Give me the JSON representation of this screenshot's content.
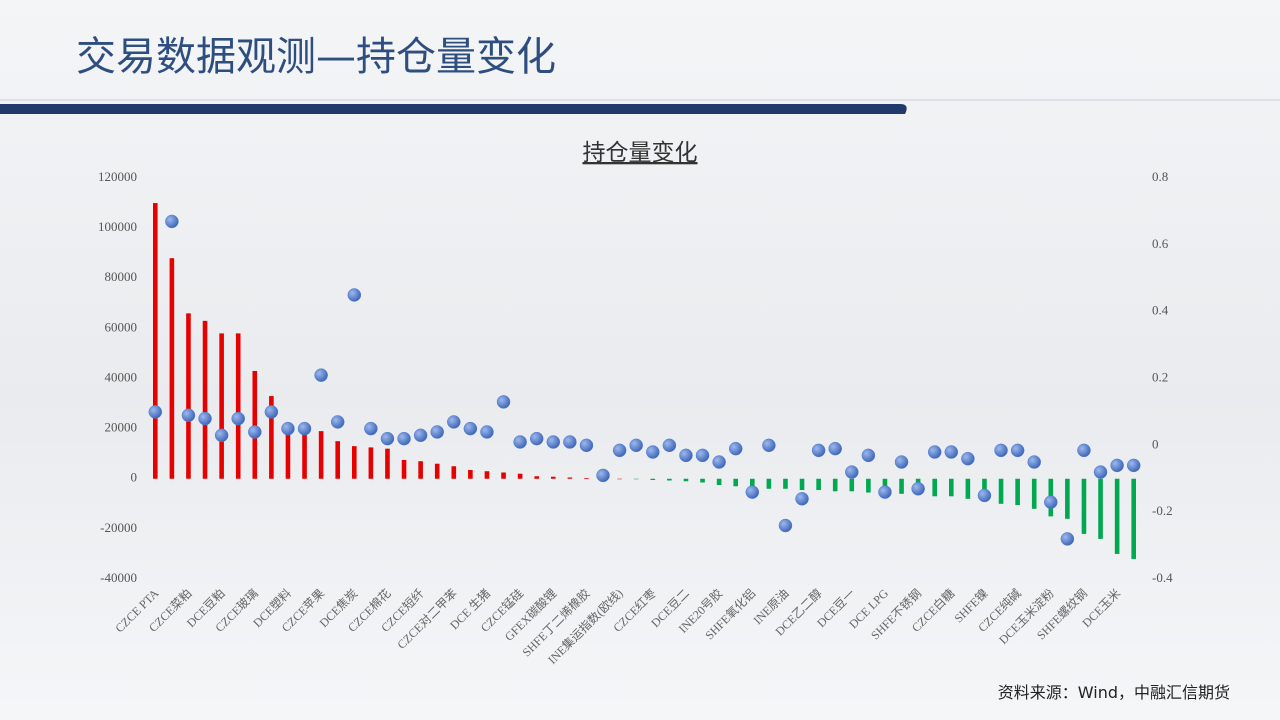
{
  "slide_title": "交易数据观测—持仓量变化",
  "source": "资料来源：Wind，中融汇信期货",
  "chart_data": {
    "type": "bar",
    "title": "持仓量变化",
    "categories": [
      "CZCE PTA",
      null,
      "CZCE菜粕",
      null,
      "DCE豆粕",
      null,
      "CZCE玻璃",
      null,
      "DCE塑料",
      null,
      "CZCE苹果",
      null,
      "DCE焦炭",
      null,
      "CZCE棉花",
      null,
      "CZCE短纤",
      null,
      "CZCE对二甲苯",
      null,
      "DCE 生猪",
      null,
      "CZCE锰硅",
      null,
      "GFEX碳酸锂",
      null,
      "SHFE丁二烯橡胶",
      null,
      "INE集运指数(欧线)",
      null,
      "CZCE红枣",
      null,
      "DCE豆二",
      null,
      "INE20号胶",
      null,
      "SHFE氧化铝",
      null,
      "INE原油",
      null,
      "DCE乙二醇",
      null,
      "DCE豆一",
      null,
      "DCE LPG",
      null,
      "SHFE不锈钢",
      null,
      "CZCE白糖",
      null,
      "SHFE镍",
      null,
      "CZCE纯碱",
      null,
      "DCE玉米淀粉",
      null,
      "SHFE螺纹钢",
      null,
      "DCE玉米",
      null
    ],
    "series": [
      {
        "type": "bar",
        "positive_color": "#e60000",
        "negative_color": "#00a84f",
        "values": [
          110000,
          88000,
          66000,
          63000,
          58000,
          58000,
          43000,
          33000,
          21500,
          20000,
          19000,
          15000,
          13000,
          12500,
          12000,
          7500,
          7000,
          6000,
          5000,
          3500,
          3000,
          2500,
          2000,
          1000,
          800,
          500,
          300,
          100,
          0,
          -200,
          -500,
          -700,
          -1000,
          -1500,
          -2500,
          -3000,
          -3500,
          -4000,
          -4000,
          -4500,
          -4500,
          -5000,
          -5000,
          -5500,
          -5500,
          -6000,
          -6500,
          -7000,
          -7000,
          -8000,
          -9000,
          -10000,
          -10500,
          -12000,
          -15000,
          -16000,
          -22000,
          -24000,
          -30000,
          -32000
        ]
      },
      {
        "type": "scatter",
        "axis": "y2",
        "color": "#4f7bd0",
        "values": [
          0.1,
          0.67,
          0.09,
          0.08,
          0.03,
          0.08,
          0.04,
          0.1,
          0.05,
          0.05,
          0.21,
          0.07,
          0.45,
          0.05,
          0.02,
          0.02,
          0.03,
          0.04,
          0.07,
          0.05,
          0.04,
          0.13,
          0.01,
          0.02,
          0.01,
          0.01,
          0,
          -0.09,
          -0.015,
          0,
          -0.02,
          0,
          -0.03,
          -0.03,
          -0.05,
          -0.01,
          -0.14,
          0,
          -0.24,
          -0.16,
          -0.015,
          -0.01,
          -0.08,
          -0.03,
          -0.14,
          -0.05,
          -0.13,
          -0.02,
          -0.02,
          -0.04,
          -0.15,
          -0.015,
          -0.015,
          -0.05,
          -0.17,
          -0.28,
          -0.015,
          -0.08,
          -0.06,
          -0.06
        ]
      }
    ],
    "ylim": [
      -40000,
      120000
    ],
    "yticks": [
      -40000,
      -20000,
      0,
      20000,
      40000,
      60000,
      80000,
      100000,
      120000
    ],
    "y2lim": [
      -0.4,
      0.8
    ],
    "y2ticks": [
      -0.4,
      -0.2,
      0,
      0.2,
      0.4,
      0.6,
      0.8
    ]
  }
}
